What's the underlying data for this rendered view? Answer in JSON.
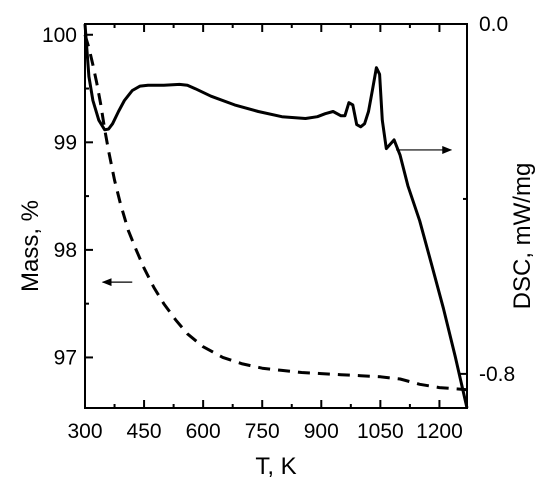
{
  "chart_data": {
    "type": "line",
    "xlabel": "T, K",
    "ylabel_left": "Mass, %",
    "ylabel_right": "DSC, mW/mg",
    "xlim": [
      300,
      1270
    ],
    "ylim_left": [
      96.53,
      100.1
    ],
    "ylim_right": [
      -0.878,
      0.0
    ],
    "x_ticks": [
      300,
      450,
      600,
      750,
      900,
      1050,
      1200
    ],
    "x_tick_labels": [
      "300",
      "450",
      "600",
      "750",
      "900",
      "1050",
      "1200"
    ],
    "y_left_ticks": [
      97,
      98,
      99,
      100
    ],
    "y_left_tick_labels": [
      "97",
      "98",
      "99",
      "100"
    ],
    "y_right_ticks": [
      0.0,
      -0.8
    ],
    "y_right_tick_labels": [
      "0.0",
      "-0.8"
    ],
    "grid": false,
    "series": [
      {
        "axis": "right",
        "style": "solid",
        "color": "#000000",
        "x": [
          300,
          310,
          320,
          335,
          350,
          360,
          370,
          385,
          400,
          420,
          440,
          460,
          500,
          540,
          560,
          580,
          620,
          680,
          740,
          800,
          860,
          890,
          910,
          930,
          950,
          960,
          970,
          980,
          990,
          1000,
          1010,
          1020,
          1030,
          1040,
          1048,
          1055,
          1065,
          1075,
          1085,
          1100,
          1120,
          1150,
          1180,
          1210,
          1240,
          1270
        ],
        "values": [
          0.0,
          -0.12,
          -0.175,
          -0.22,
          -0.242,
          -0.24,
          -0.228,
          -0.2,
          -0.175,
          -0.152,
          -0.142,
          -0.14,
          -0.14,
          -0.138,
          -0.14,
          -0.148,
          -0.165,
          -0.185,
          -0.2,
          -0.212,
          -0.216,
          -0.212,
          -0.205,
          -0.2,
          -0.21,
          -0.21,
          -0.18,
          -0.185,
          -0.23,
          -0.235,
          -0.228,
          -0.2,
          -0.15,
          -0.1,
          -0.115,
          -0.22,
          -0.285,
          -0.275,
          -0.265,
          -0.3,
          -0.37,
          -0.45,
          -0.55,
          -0.65,
          -0.76,
          -0.878
        ]
      },
      {
        "axis": "left",
        "style": "dashed",
        "color": "#000000",
        "x": [
          300,
          310,
          320,
          330,
          340,
          350,
          360,
          375,
          390,
          410,
          430,
          450,
          475,
          500,
          530,
          560,
          600,
          650,
          700,
          750,
          800,
          850,
          900,
          950,
          1000,
          1050,
          1100,
          1150,
          1200,
          1270
        ],
        "values": [
          100.0,
          99.88,
          99.72,
          99.55,
          99.35,
          99.12,
          98.92,
          98.65,
          98.43,
          98.18,
          98.0,
          97.83,
          97.65,
          97.5,
          97.35,
          97.22,
          97.1,
          97.0,
          96.94,
          96.9,
          96.88,
          96.86,
          96.85,
          96.84,
          96.83,
          96.82,
          96.8,
          96.75,
          96.72,
          96.7
        ]
      }
    ],
    "annotations": [
      {
        "type": "arrow",
        "direction": "left",
        "x_start": 420,
        "x_end": 345,
        "y": 97.7,
        "axis": "left"
      },
      {
        "type": "arrow",
        "direction": "right",
        "x_start": 1090,
        "x_end": 1230,
        "y": -0.288,
        "axis": "right"
      }
    ]
  }
}
